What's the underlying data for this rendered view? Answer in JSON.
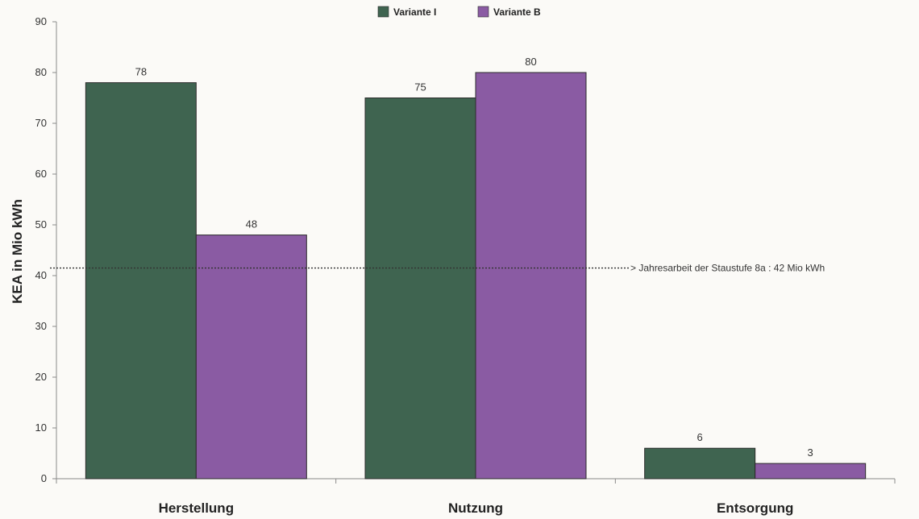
{
  "chart_data": {
    "type": "bar",
    "categories": [
      "Herstellung",
      "Nutzung",
      "Entsorgung"
    ],
    "series": [
      {
        "name": "Variante I",
        "values": [
          78,
          75,
          6
        ],
        "color": "#3f6450"
      },
      {
        "name": "Variante B",
        "values": [
          48,
          80,
          3
        ],
        "color": "#8a5ba3"
      }
    ],
    "ylabel": "KEA in Mio kWh",
    "xlabel": "",
    "ylim": [
      0,
      90
    ],
    "yticks": [
      0,
      10,
      20,
      30,
      40,
      50,
      60,
      70,
      80,
      90
    ],
    "grid": false,
    "legend_position": "top-center",
    "reference_line": {
      "value": 41.5,
      "label": "> Jahresarbeit der Staustufe 8a :   42 Mio kWh",
      "style": "dotted"
    }
  }
}
